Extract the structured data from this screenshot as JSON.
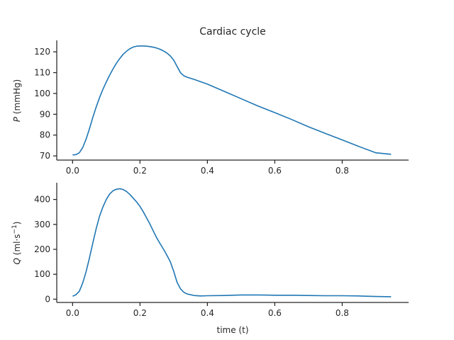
{
  "figure": {
    "title": "Cardiac cycle"
  },
  "chart_data": [
    {
      "type": "line",
      "ylabel_symbol": "P",
      "ylabel_rest": " (mmHg)",
      "xlabel": "",
      "xlim": [
        -0.047,
        0.997
      ],
      "ylim": [
        68,
        125.5
      ],
      "xticks": [
        0.0,
        0.2,
        0.4,
        0.6,
        0.8
      ],
      "xtick_labels": [
        "0.0",
        "0.2",
        "0.4",
        "0.6",
        "0.8"
      ],
      "yticks": [
        70,
        80,
        90,
        100,
        110,
        120
      ],
      "ytick_labels": [
        "70",
        "80",
        "90",
        "100",
        "110",
        "120"
      ],
      "grid": false,
      "series": [
        {
          "color": "#1f77b4",
          "x": [
            0.0,
            0.01,
            0.02,
            0.03,
            0.04,
            0.05,
            0.06,
            0.07,
            0.08,
            0.09,
            0.1,
            0.11,
            0.12,
            0.13,
            0.14,
            0.15,
            0.16,
            0.17,
            0.18,
            0.19,
            0.2,
            0.21,
            0.22,
            0.23,
            0.24,
            0.25,
            0.26,
            0.27,
            0.28,
            0.29,
            0.3,
            0.31,
            0.32,
            0.33,
            0.34,
            0.36,
            0.4,
            0.45,
            0.5,
            0.55,
            0.6,
            0.65,
            0.7,
            0.75,
            0.8,
            0.85,
            0.9,
            0.945
          ],
          "y": [
            70.5,
            70.6,
            71.5,
            74.0,
            78.0,
            83.0,
            88.5,
            93.5,
            98.0,
            102.0,
            105.5,
            108.8,
            111.8,
            114.5,
            116.8,
            118.8,
            120.3,
            121.5,
            122.3,
            122.7,
            122.8,
            122.8,
            122.7,
            122.5,
            122.2,
            121.8,
            121.2,
            120.4,
            119.4,
            118.0,
            116.0,
            113.0,
            110.0,
            108.5,
            107.8,
            106.8,
            104.5,
            101.0,
            97.5,
            94.0,
            90.8,
            87.5,
            84.0,
            80.8,
            77.7,
            74.5,
            71.5,
            70.8
          ]
        }
      ]
    },
    {
      "type": "line",
      "ylabel_symbol": "Q",
      "ylabel_rest": " (ml·s",
      "ylabel_sup": "−1",
      "ylabel_tail": ")",
      "xlabel": "time (t)",
      "xlim": [
        -0.047,
        0.997
      ],
      "ylim": [
        -13,
        467
      ],
      "xticks": [
        0.0,
        0.2,
        0.4,
        0.6,
        0.8
      ],
      "xtick_labels": [
        "0.0",
        "0.2",
        "0.4",
        "0.6",
        "0.8"
      ],
      "yticks": [
        0,
        100,
        200,
        300,
        400
      ],
      "ytick_labels": [
        "0",
        "100",
        "200",
        "300",
        "400"
      ],
      "grid": false,
      "series": [
        {
          "color": "#1f77b4",
          "x": [
            0.0,
            0.01,
            0.02,
            0.03,
            0.04,
            0.05,
            0.06,
            0.07,
            0.08,
            0.09,
            0.1,
            0.11,
            0.12,
            0.13,
            0.14,
            0.15,
            0.16,
            0.17,
            0.18,
            0.19,
            0.2,
            0.21,
            0.22,
            0.23,
            0.24,
            0.25,
            0.26,
            0.27,
            0.28,
            0.29,
            0.3,
            0.31,
            0.32,
            0.33,
            0.34,
            0.35,
            0.36,
            0.38,
            0.4,
            0.45,
            0.5,
            0.55,
            0.6,
            0.65,
            0.7,
            0.75,
            0.8,
            0.85,
            0.9,
            0.945
          ],
          "y": [
            12,
            18,
            32,
            65,
            110,
            165,
            225,
            283,
            333,
            370,
            400,
            422,
            435,
            441,
            443,
            440,
            432,
            420,
            405,
            390,
            372,
            350,
            325,
            300,
            272,
            245,
            222,
            200,
            176,
            150,
            112,
            68,
            42,
            28,
            21,
            18,
            15,
            13,
            14,
            15,
            17,
            17,
            16,
            16,
            15,
            14,
            14,
            13,
            11,
            10
          ]
        }
      ]
    }
  ]
}
